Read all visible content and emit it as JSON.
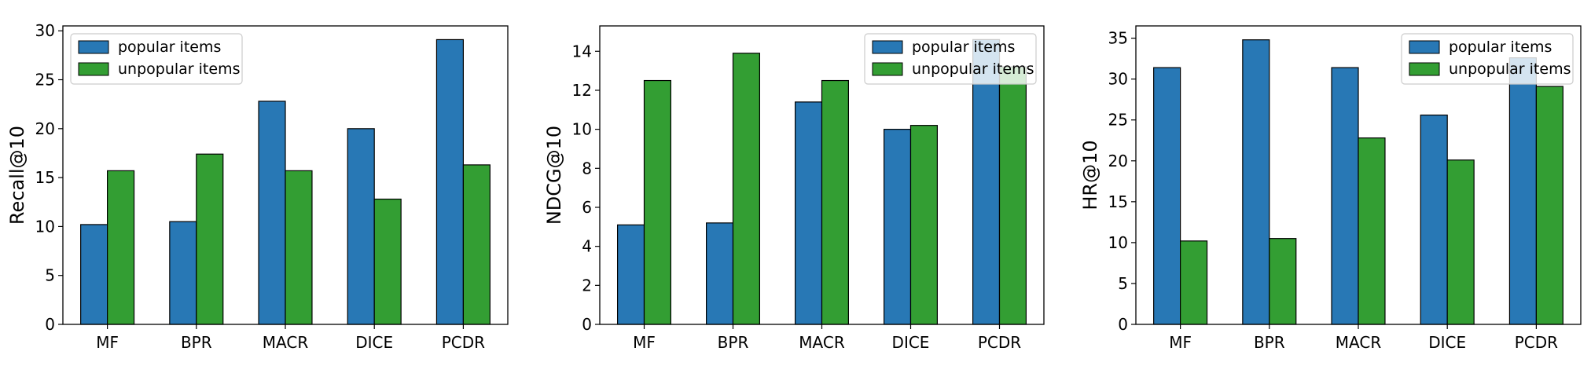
{
  "chart_data": [
    {
      "type": "bar",
      "categories": [
        "MF",
        "BPR",
        "MACR",
        "DICE",
        "PCDR"
      ],
      "series": [
        {
          "name": "popular items",
          "values": [
            10.2,
            10.5,
            22.8,
            20.0,
            29.1
          ]
        },
        {
          "name": "unpopular items",
          "values": [
            15.7,
            17.4,
            15.7,
            12.8,
            16.3
          ]
        }
      ],
      "xlabel": "",
      "ylabel": "Recall@10",
      "ylim": [
        0,
        30.5
      ],
      "yticks": [
        0,
        5,
        10,
        15,
        20,
        25,
        30
      ],
      "legend_position": "upper left",
      "grid": false
    },
    {
      "type": "bar",
      "categories": [
        "MF",
        "BPR",
        "MACR",
        "DICE",
        "PCDR"
      ],
      "series": [
        {
          "name": "popular items",
          "values": [
            5.1,
            5.2,
            11.4,
            10.0,
            14.6
          ]
        },
        {
          "name": "unpopular items",
          "values": [
            12.5,
            13.9,
            12.5,
            10.2,
            13.2
          ]
        }
      ],
      "xlabel": "",
      "ylabel": "NDCG@10",
      "ylim": [
        0,
        15.3
      ],
      "yticks": [
        0,
        2,
        4,
        6,
        8,
        10,
        12,
        14
      ],
      "legend_position": "upper right",
      "grid": false
    },
    {
      "type": "bar",
      "categories": [
        "MF",
        "BPR",
        "MACR",
        "DICE",
        "PCDR"
      ],
      "series": [
        {
          "name": "popular items",
          "values": [
            31.4,
            34.8,
            31.4,
            25.6,
            32.6
          ]
        },
        {
          "name": "unpopular items",
          "values": [
            10.2,
            10.5,
            22.8,
            20.1,
            29.1
          ]
        }
      ],
      "xlabel": "",
      "ylabel": "HR@10",
      "ylim": [
        0,
        36.5
      ],
      "yticks": [
        0,
        5,
        10,
        15,
        20,
        25,
        30,
        35
      ],
      "legend_position": "upper right",
      "grid": false
    }
  ],
  "colors": {
    "popular": "#2878b5",
    "unpopular": "#339e33",
    "edge": "#000000"
  }
}
